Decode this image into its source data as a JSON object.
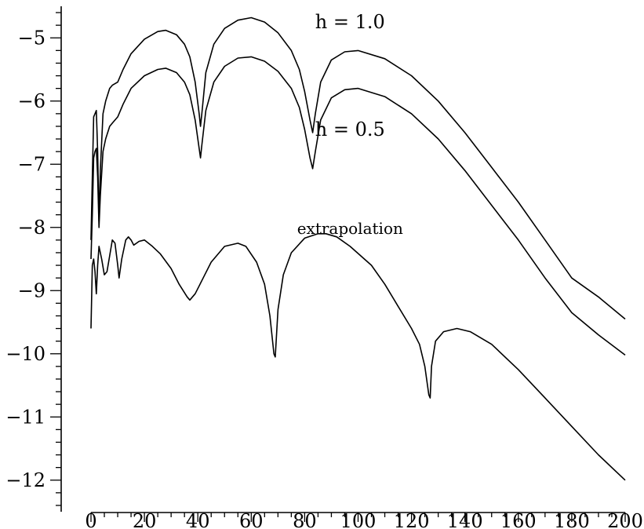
{
  "chart_data": {
    "type": "line",
    "title": "",
    "xlabel": "",
    "ylabel": "",
    "xlim": [
      0,
      200
    ],
    "ylim": [
      -12.5,
      -4.5
    ],
    "grid": false,
    "x_ticks": [
      0,
      20,
      40,
      60,
      80,
      100,
      120,
      140,
      160,
      180,
      200
    ],
    "y_ticks": [
      -12,
      -11,
      -10,
      -9,
      -8,
      -7,
      -6,
      -5
    ],
    "x_tick_labels": [
      "0",
      "20",
      "40",
      "60",
      "80",
      "100",
      "120",
      "140",
      "160",
      "180",
      "200"
    ],
    "y_tick_labels": [
      "−12",
      "−11",
      "−10",
      "−9",
      "−8",
      "−7",
      "−6",
      "−5"
    ],
    "annotations": [
      {
        "label": "h = 1.0",
        "x": 97,
        "y": -4.85
      },
      {
        "label": "h = 0.5",
        "x": 97,
        "y": -6.55
      },
      {
        "label": "extrapolation",
        "x": 97,
        "y": -8.1
      }
    ],
    "series": [
      {
        "points": [
          [
            0,
            -8.2
          ],
          [
            0.5,
            -7.2
          ],
          [
            1.0,
            -6.25
          ],
          [
            1.5,
            -6.2
          ],
          [
            2.0,
            -6.15
          ],
          [
            2.5,
            -6.8
          ],
          [
            3.0,
            -7.9
          ],
          [
            3.5,
            -7.1
          ],
          [
            4.5,
            -6.2
          ],
          [
            5.5,
            -6.0
          ],
          [
            7,
            -5.8
          ],
          [
            8,
            -5.75
          ],
          [
            10,
            -5.7
          ],
          [
            12,
            -5.5
          ],
          [
            15,
            -5.25
          ],
          [
            20,
            -5.02
          ],
          [
            25,
            -4.9
          ],
          [
            28,
            -4.88
          ],
          [
            32,
            -4.95
          ],
          [
            35,
            -5.1
          ],
          [
            37,
            -5.3
          ],
          [
            39,
            -5.7
          ],
          [
            40.5,
            -6.2
          ],
          [
            41,
            -6.4
          ],
          [
            41.5,
            -6.2
          ],
          [
            43,
            -5.55
          ],
          [
            46,
            -5.1
          ],
          [
            50,
            -4.85
          ],
          [
            55,
            -4.72
          ],
          [
            60,
            -4.68
          ],
          [
            65,
            -4.75
          ],
          [
            70,
            -4.92
          ],
          [
            75,
            -5.2
          ],
          [
            78,
            -5.5
          ],
          [
            80,
            -5.85
          ],
          [
            82,
            -6.3
          ],
          [
            83,
            -6.5
          ],
          [
            84,
            -6.2
          ],
          [
            86,
            -5.7
          ],
          [
            90,
            -5.35
          ],
          [
            95,
            -5.22
          ],
          [
            100,
            -5.2
          ],
          [
            110,
            -5.33
          ],
          [
            120,
            -5.6
          ],
          [
            130,
            -6.0
          ],
          [
            140,
            -6.5
          ],
          [
            150,
            -7.05
          ],
          [
            160,
            -7.6
          ],
          [
            170,
            -8.2
          ],
          [
            180,
            -8.8
          ],
          [
            190,
            -9.1
          ],
          [
            200,
            -9.45
          ]
        ]
      },
      {
        "points": [
          [
            0,
            -8.5
          ],
          [
            0.5,
            -7.8
          ],
          [
            1.0,
            -6.9
          ],
          [
            1.5,
            -6.8
          ],
          [
            2.0,
            -6.75
          ],
          [
            2.5,
            -7.2
          ],
          [
            3.0,
            -8.0
          ],
          [
            3.5,
            -7.5
          ],
          [
            4.5,
            -6.8
          ],
          [
            5.5,
            -6.6
          ],
          [
            7,
            -6.4
          ],
          [
            8,
            -6.35
          ],
          [
            10,
            -6.25
          ],
          [
            12,
            -6.05
          ],
          [
            15,
            -5.8
          ],
          [
            20,
            -5.6
          ],
          [
            25,
            -5.5
          ],
          [
            28,
            -5.48
          ],
          [
            32,
            -5.55
          ],
          [
            35,
            -5.7
          ],
          [
            37,
            -5.9
          ],
          [
            39,
            -6.3
          ],
          [
            40.5,
            -6.75
          ],
          [
            41,
            -6.9
          ],
          [
            41.5,
            -6.7
          ],
          [
            43,
            -6.15
          ],
          [
            46,
            -5.7
          ],
          [
            50,
            -5.45
          ],
          [
            55,
            -5.32
          ],
          [
            60,
            -5.3
          ],
          [
            65,
            -5.37
          ],
          [
            70,
            -5.53
          ],
          [
            75,
            -5.8
          ],
          [
            78,
            -6.1
          ],
          [
            80,
            -6.45
          ],
          [
            82,
            -6.9
          ],
          [
            83,
            -7.07
          ],
          [
            84,
            -6.8
          ],
          [
            86,
            -6.3
          ],
          [
            90,
            -5.95
          ],
          [
            95,
            -5.82
          ],
          [
            100,
            -5.8
          ],
          [
            110,
            -5.93
          ],
          [
            120,
            -6.2
          ],
          [
            130,
            -6.6
          ],
          [
            140,
            -7.1
          ],
          [
            150,
            -7.65
          ],
          [
            160,
            -8.2
          ],
          [
            170,
            -8.8
          ],
          [
            180,
            -9.35
          ],
          [
            190,
            -9.7
          ],
          [
            200,
            -10.02
          ]
        ]
      },
      {
        "points": [
          [
            0,
            -9.6
          ],
          [
            0.5,
            -8.6
          ],
          [
            1.0,
            -8.5
          ],
          [
            1.5,
            -8.7
          ],
          [
            2.0,
            -9.05
          ],
          [
            2.5,
            -8.6
          ],
          [
            3.0,
            -8.3
          ],
          [
            4.0,
            -8.5
          ],
          [
            5.0,
            -8.75
          ],
          [
            6.0,
            -8.7
          ],
          [
            7.0,
            -8.45
          ],
          [
            8.0,
            -8.2
          ],
          [
            9.0,
            -8.25
          ],
          [
            10.0,
            -8.6
          ],
          [
            10.5,
            -8.8
          ],
          [
            11.5,
            -8.5
          ],
          [
            13,
            -8.2
          ],
          [
            14,
            -8.15
          ],
          [
            15,
            -8.2
          ],
          [
            16,
            -8.28
          ],
          [
            18,
            -8.22
          ],
          [
            20,
            -8.2
          ],
          [
            23,
            -8.3
          ],
          [
            26,
            -8.42
          ],
          [
            30,
            -8.65
          ],
          [
            33,
            -8.9
          ],
          [
            36,
            -9.1
          ],
          [
            37,
            -9.15
          ],
          [
            39,
            -9.05
          ],
          [
            42,
            -8.8
          ],
          [
            45,
            -8.55
          ],
          [
            50,
            -8.3
          ],
          [
            55,
            -8.25
          ],
          [
            58,
            -8.3
          ],
          [
            62,
            -8.55
          ],
          [
            65,
            -8.9
          ],
          [
            67,
            -9.4
          ],
          [
            68.5,
            -10.0
          ],
          [
            69,
            -10.05
          ],
          [
            70,
            -9.3
          ],
          [
            72,
            -8.75
          ],
          [
            75,
            -8.4
          ],
          [
            80,
            -8.17
          ],
          [
            85,
            -8.1
          ],
          [
            88,
            -8.1
          ],
          [
            92,
            -8.15
          ],
          [
            97,
            -8.3
          ],
          [
            105,
            -8.6
          ],
          [
            110,
            -8.9
          ],
          [
            115,
            -9.25
          ],
          [
            120,
            -9.6
          ],
          [
            123,
            -9.85
          ],
          [
            125,
            -10.2
          ],
          [
            126.5,
            -10.65
          ],
          [
            127,
            -10.7
          ],
          [
            127.5,
            -10.2
          ],
          [
            129,
            -9.8
          ],
          [
            132,
            -9.65
          ],
          [
            137,
            -9.6
          ],
          [
            142,
            -9.65
          ],
          [
            150,
            -9.85
          ],
          [
            160,
            -10.25
          ],
          [
            170,
            -10.7
          ],
          [
            180,
            -11.15
          ],
          [
            190,
            -11.6
          ],
          [
            200,
            -12.0
          ]
        ]
      }
    ]
  }
}
